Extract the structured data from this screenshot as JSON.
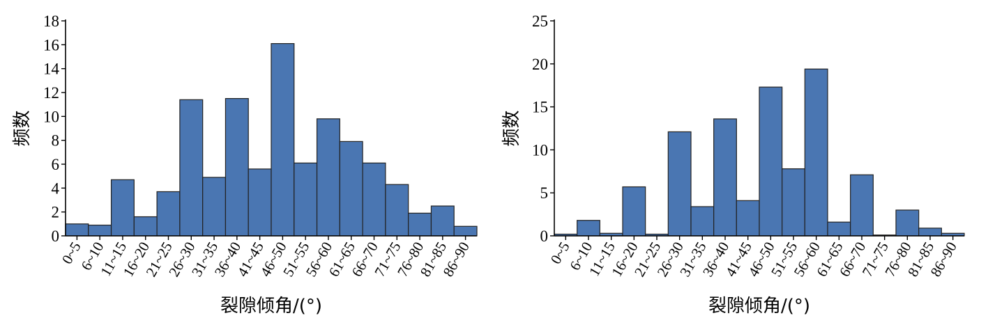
{
  "chart_data": [
    {
      "type": "bar",
      "title": "",
      "xlabel": "裂隙倾角/(°)",
      "ylabel": "频数",
      "ylim": [
        0,
        18
      ],
      "yticks": [
        0,
        2,
        4,
        6,
        8,
        10,
        12,
        14,
        16,
        18
      ],
      "categories": [
        "0~5",
        "6~10",
        "11~15",
        "16~20",
        "21~25",
        "26~30",
        "31~35",
        "36~40",
        "41~45",
        "46~50",
        "51~55",
        "56~60",
        "61~65",
        "66~70",
        "71~75",
        "76~80",
        "81~85",
        "86~90"
      ],
      "values": [
        1.0,
        0.9,
        4.7,
        1.6,
        3.7,
        11.4,
        4.9,
        11.5,
        5.6,
        16.1,
        6.1,
        9.8,
        7.9,
        6.1,
        4.3,
        1.9,
        2.5,
        0.8
      ],
      "grid": false,
      "bar_color": "#4a76b2"
    },
    {
      "type": "bar",
      "title": "",
      "xlabel": "裂隙倾角/(°)",
      "ylabel": "频数",
      "ylim": [
        0,
        25
      ],
      "yticks": [
        0,
        5,
        10,
        15,
        20,
        25
      ],
      "categories": [
        "0~5",
        "6~10",
        "11~15",
        "16~20",
        "21~25",
        "26~30",
        "31~35",
        "36~40",
        "41~45",
        "46~50",
        "51~55",
        "56~60",
        "61~65",
        "66~70",
        "71~75",
        "76~80",
        "81~85",
        "86~90"
      ],
      "values": [
        0.2,
        1.8,
        0.3,
        5.7,
        0.2,
        12.1,
        3.4,
        13.6,
        4.1,
        17.3,
        7.8,
        19.4,
        1.6,
        7.1,
        0.1,
        3.0,
        0.9,
        0.3
      ],
      "grid": false,
      "bar_color": "#4a76b2"
    }
  ]
}
